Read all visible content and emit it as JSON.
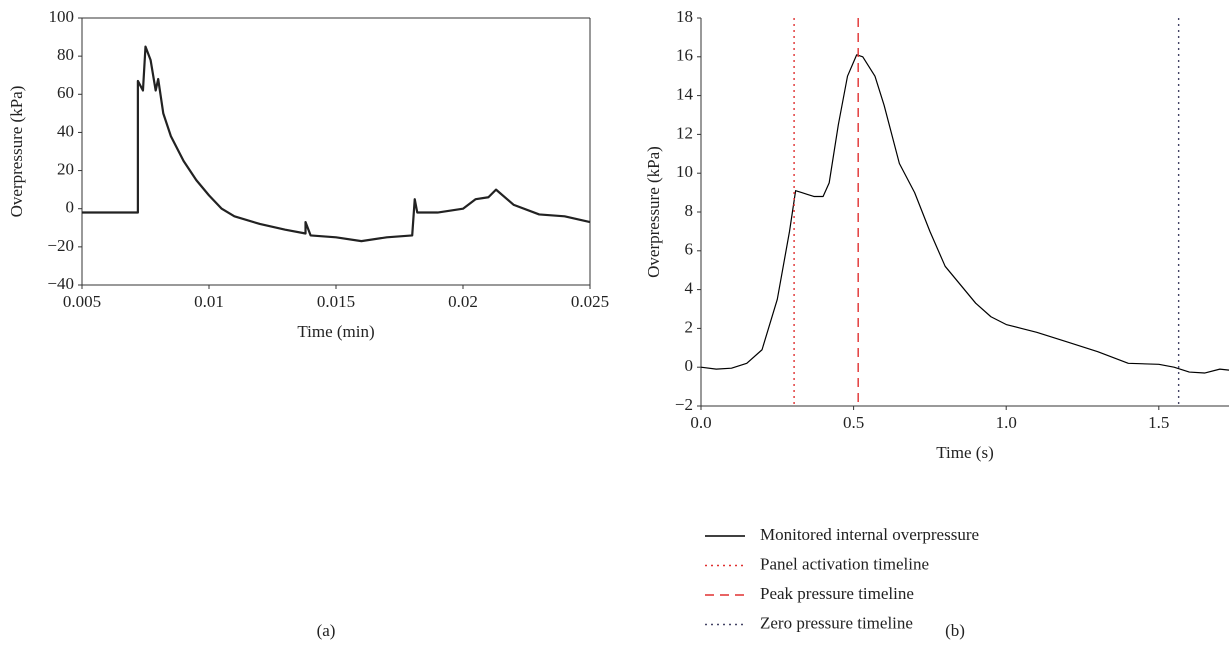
{
  "chart_data": [
    {
      "type": "line",
      "label": "(a)",
      "xlabel": "Time (min)",
      "ylabel": "Overpressure (kPa)",
      "box": true,
      "color": "#222222",
      "x": [
        0.005,
        0.0072,
        0.0072,
        0.0074,
        0.0075,
        0.0077,
        0.0079,
        0.008,
        0.0082,
        0.0085,
        0.009,
        0.0095,
        0.01,
        0.0105,
        0.011,
        0.012,
        0.013,
        0.0138,
        0.0138,
        0.014,
        0.015,
        0.016,
        0.017,
        0.018,
        0.0181,
        0.0182,
        0.019,
        0.02,
        0.0205,
        0.021,
        0.0213,
        0.022,
        0.023,
        0.024,
        0.025
      ],
      "values": [
        -2,
        -2,
        67,
        62,
        85,
        78,
        62,
        68,
        50,
        38,
        25,
        15,
        7,
        0,
        -4,
        -8,
        -11,
        -13,
        -7,
        -14,
        -15,
        -17,
        -15,
        -14,
        5,
        -2,
        -2,
        0,
        5,
        6,
        10,
        2,
        -3,
        -4,
        -7
      ],
      "xlim": [
        0.005,
        0.025
      ],
      "xticks": [
        0.005,
        0.01,
        0.015,
        0.02,
        0.025
      ],
      "ylim": [
        -40,
        100
      ],
      "yticks": [
        {
          "value": -40,
          "label": "−40"
        },
        {
          "value": -20,
          "label": "−20"
        },
        0,
        20,
        40,
        60,
        80,
        100
      ]
    },
    {
      "type": "line",
      "label": "(b)",
      "xlabel": "Time (s)",
      "ylabel": "Overpressure (kPa)",
      "box": false,
      "series": [
        {
          "name": "Monitored internal overpressure",
          "color": "#000000",
          "x": [
            0,
            0.05,
            0.1,
            0.15,
            0.2,
            0.25,
            0.29,
            0.31,
            0.33,
            0.35,
            0.37,
            0.4,
            0.42,
            0.45,
            0.48,
            0.51,
            0.53,
            0.57,
            0.6,
            0.65,
            0.7,
            0.75,
            0.8,
            0.9,
            0.95,
            1.0,
            1.05,
            1.1,
            1.2,
            1.3,
            1.4,
            1.5,
            1.55,
            1.6,
            1.65,
            1.7,
            1.73
          ],
          "values": [
            0,
            -0.1,
            -0.05,
            0.2,
            0.9,
            3.5,
            7,
            9.1,
            9.0,
            8.9,
            8.8,
            8.8,
            9.5,
            12.5,
            15,
            16.1,
            16.0,
            15,
            13.5,
            10.5,
            9,
            7,
            5.2,
            3.3,
            2.6,
            2.2,
            2.0,
            1.8,
            1.3,
            0.8,
            0.2,
            0.15,
            0,
            -0.25,
            -0.3,
            -0.1,
            -0.15
          ]
        }
      ],
      "vlines": [
        {
          "name": "Panel activation timeline",
          "x": 0.305,
          "color": "#e03030",
          "style": "dotted"
        },
        {
          "name": "Peak pressure timeline",
          "x": 0.515,
          "color": "#e03030",
          "style": "dashed"
        },
        {
          "name": "Zero pressure timeline",
          "x": 1.565,
          "color": "#444466",
          "style": "dotted"
        }
      ],
      "xlim": [
        0,
        1.73
      ],
      "xticks": [
        {
          "value": 0,
          "label": "0.0"
        },
        {
          "value": 0.5,
          "label": "0.5"
        },
        {
          "value": 1,
          "label": "1.0"
        },
        {
          "value": 1.5,
          "label": "1.5"
        }
      ],
      "ylim": [
        -2,
        18
      ],
      "yticks": [
        {
          "value": -2,
          "label": "−2"
        },
        0,
        2,
        4,
        6,
        8,
        10,
        12,
        14,
        16,
        18
      ]
    }
  ]
}
